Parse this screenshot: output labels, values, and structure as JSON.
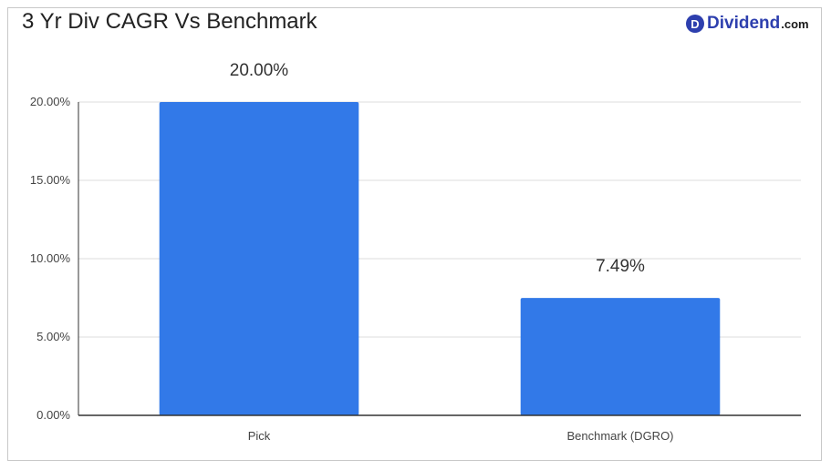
{
  "logo": {
    "badge": "D",
    "name": "Dividend",
    "suffix": ".com",
    "color": "#2d3fae"
  },
  "chart_data": {
    "type": "bar",
    "title": "3 Yr Div CAGR Vs Benchmark",
    "categories": [
      "Pick",
      "Benchmark (DGRO)"
    ],
    "values": [
      20.0,
      7.49
    ],
    "data_labels": [
      "20.00%",
      "7.49%"
    ],
    "ylim": [
      0,
      20
    ],
    "yticks": [
      0,
      5,
      10,
      15,
      20
    ],
    "ytick_labels": [
      "0.00%",
      "5.00%",
      "10.00%",
      "15.00%",
      "20.00%"
    ],
    "grid": true,
    "bar_color": "#3279e8"
  }
}
